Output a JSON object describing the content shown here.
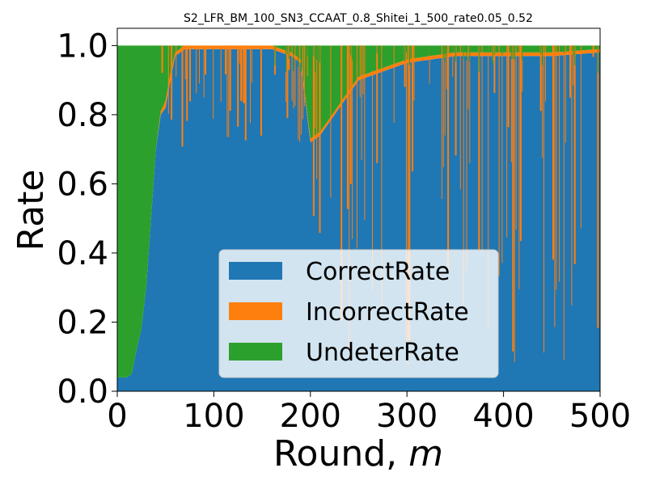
{
  "chart_data": {
    "type": "area",
    "stacked": true,
    "title": "S2_LFR_BM_100_SN3_CCAAT_0.8_Shitei_1_500_rate0.05_0.52",
    "xlabel_prefix": "Round, ",
    "xlabel_var": "m",
    "ylabel": "Rate",
    "xlim": [
      0,
      500
    ],
    "ylim": [
      0.0,
      1.05
    ],
    "xticks": [
      0,
      100,
      200,
      300,
      400,
      500
    ],
    "xtick_labels": [
      "0",
      "100",
      "200",
      "300",
      "400",
      "500"
    ],
    "yticks": [
      0.0,
      0.2,
      0.4,
      0.6,
      0.8,
      1.0
    ],
    "ytick_labels": [
      "0.0",
      "0.2",
      "0.4",
      "0.6",
      "0.8",
      "1.0"
    ],
    "grid": false,
    "legend_position": "lower-center",
    "series": [
      {
        "name": "CorrectRate",
        "color": "#1f77b4"
      },
      {
        "name": "IncorrectRate",
        "color": "#ff7f0e"
      },
      {
        "name": "UndeterRate",
        "color": "#2ca02c"
      }
    ],
    "x": [
      0,
      10,
      15,
      20,
      25,
      30,
      35,
      40,
      45,
      50,
      55,
      60,
      70,
      100,
      120,
      140,
      160,
      180,
      190,
      200,
      210,
      220,
      250,
      300,
      350,
      400,
      450,
      500
    ],
    "correct": [
      0.04,
      0.04,
      0.05,
      0.12,
      0.18,
      0.3,
      0.5,
      0.7,
      0.8,
      0.82,
      0.9,
      0.97,
      0.99,
      0.99,
      0.99,
      0.99,
      0.99,
      0.97,
      0.95,
      0.72,
      0.74,
      0.78,
      0.9,
      0.95,
      0.97,
      0.97,
      0.97,
      0.98
    ],
    "incorrect": [
      0.0,
      0.0,
      0.0,
      0.0,
      0.0,
      0.0,
      0.0,
      0.0,
      0.01,
      0.02,
      0.02,
      0.01,
      0.01,
      0.01,
      0.01,
      0.01,
      0.01,
      0.01,
      0.01,
      0.01,
      0.01,
      0.01,
      0.01,
      0.01,
      0.01,
      0.01,
      0.01,
      0.01
    ],
    "undeter": [
      0.96,
      0.96,
      0.95,
      0.88,
      0.82,
      0.7,
      0.5,
      0.3,
      0.19,
      0.16,
      0.08,
      0.02,
      0.0,
      0.0,
      0.0,
      0.0,
      0.0,
      0.02,
      0.04,
      0.27,
      0.25,
      0.21,
      0.09,
      0.04,
      0.02,
      0.02,
      0.02,
      0.01
    ]
  }
}
